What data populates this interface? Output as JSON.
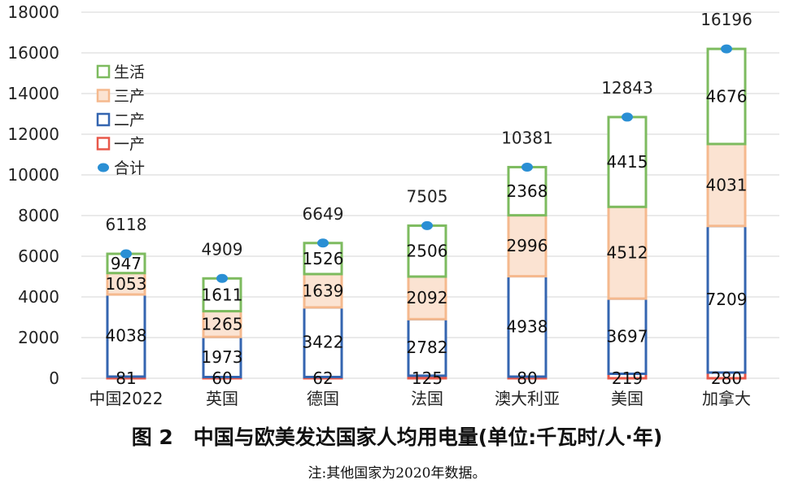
{
  "chart_data": {
    "type": "bar",
    "stacked": true,
    "categories": [
      "中国2022",
      "英国",
      "德国",
      "法国",
      "澳大利亚",
      "美国",
      "加拿大"
    ],
    "series": [
      {
        "name": "一产",
        "values": [
          81,
          60,
          62,
          125,
          80,
          219,
          280
        ],
        "color": "#e8584a",
        "fill": "#ffffff"
      },
      {
        "name": "二产",
        "values": [
          4038,
          1973,
          3422,
          2782,
          4938,
          3697,
          7209
        ],
        "color": "#3465b0",
        "fill": "#ffffff"
      },
      {
        "name": "三产",
        "values": [
          1053,
          1265,
          1639,
          2092,
          2996,
          4512,
          4031
        ],
        "color": "#f5b98e",
        "fill": "#fbe3d2"
      },
      {
        "name": "生活",
        "values": [
          947,
          1611,
          1526,
          2506,
          2368,
          4415,
          4676
        ],
        "color": "#7dbb5f",
        "fill": "#ffffff"
      }
    ],
    "totals": {
      "name": "合计",
      "values": [
        6118,
        4909,
        6649,
        7505,
        10381,
        12843,
        16196
      ],
      "color": "#2a8fd4"
    },
    "y_ticks": [
      "0",
      "2000",
      "4000",
      "6000",
      "8000",
      "10000",
      "12000",
      "14000",
      "16000",
      "18000"
    ],
    "ylim": [
      0,
      18000
    ],
    "grid": true,
    "legend_position": "top-left",
    "legend_order": [
      "生活",
      "三产",
      "二产",
      "一产",
      "合计"
    ],
    "title": "图 2　中国与欧美发达国家人均用电量(单位:千瓦时/人·年)",
    "note": "注:其他国家为2020年数据。"
  }
}
